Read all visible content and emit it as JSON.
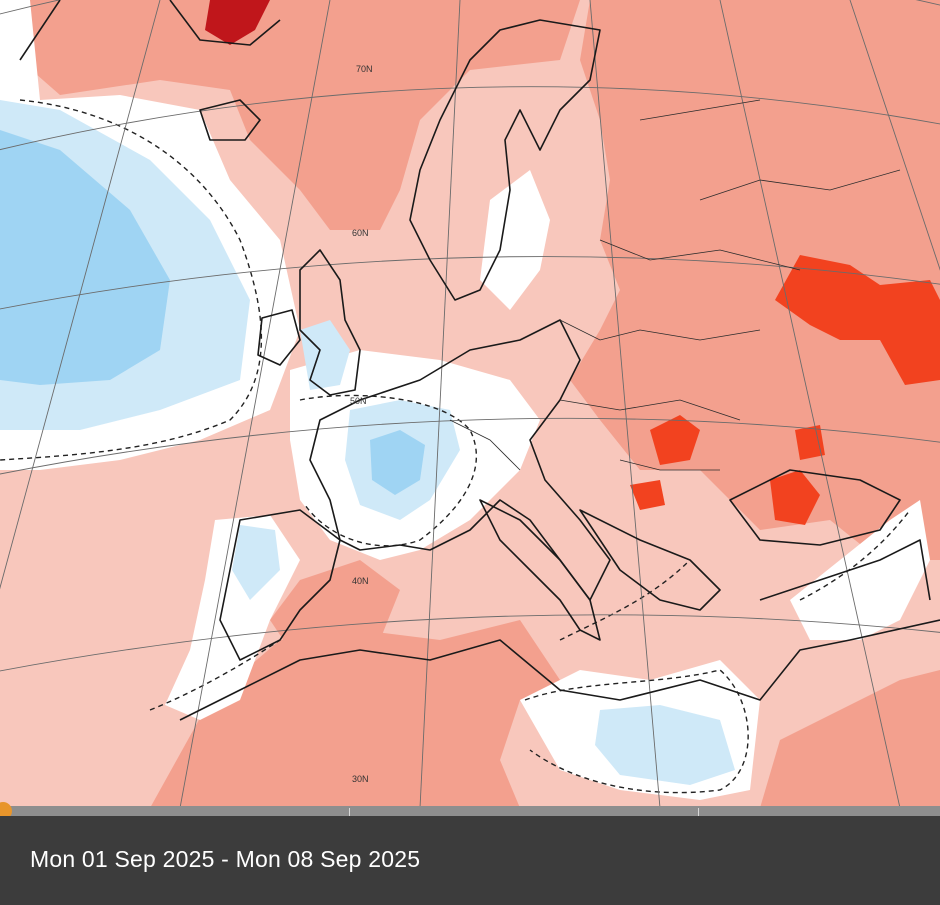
{
  "map": {
    "type": "temperature-anomaly-weekly",
    "region": "Europe",
    "colors": {
      "strong_warm": "#f2421f",
      "warm": "#f3a08e",
      "mild_warm": "#f8c7bc",
      "neutral": "#ffffff",
      "mild_cool": "#cfe9f8",
      "cool": "#9fd4f3",
      "dark_warm": "#c0161b",
      "coast": "#1a1a1a",
      "grid": "#6b6b6b"
    },
    "graticule_labels": [
      "70N",
      "60N",
      "50N",
      "40N",
      "30N"
    ]
  },
  "timeline": {
    "handle_color": "#e8952b",
    "date_range": "Mon 01 Sep 2025 - Mon 08 Sep 2025"
  }
}
